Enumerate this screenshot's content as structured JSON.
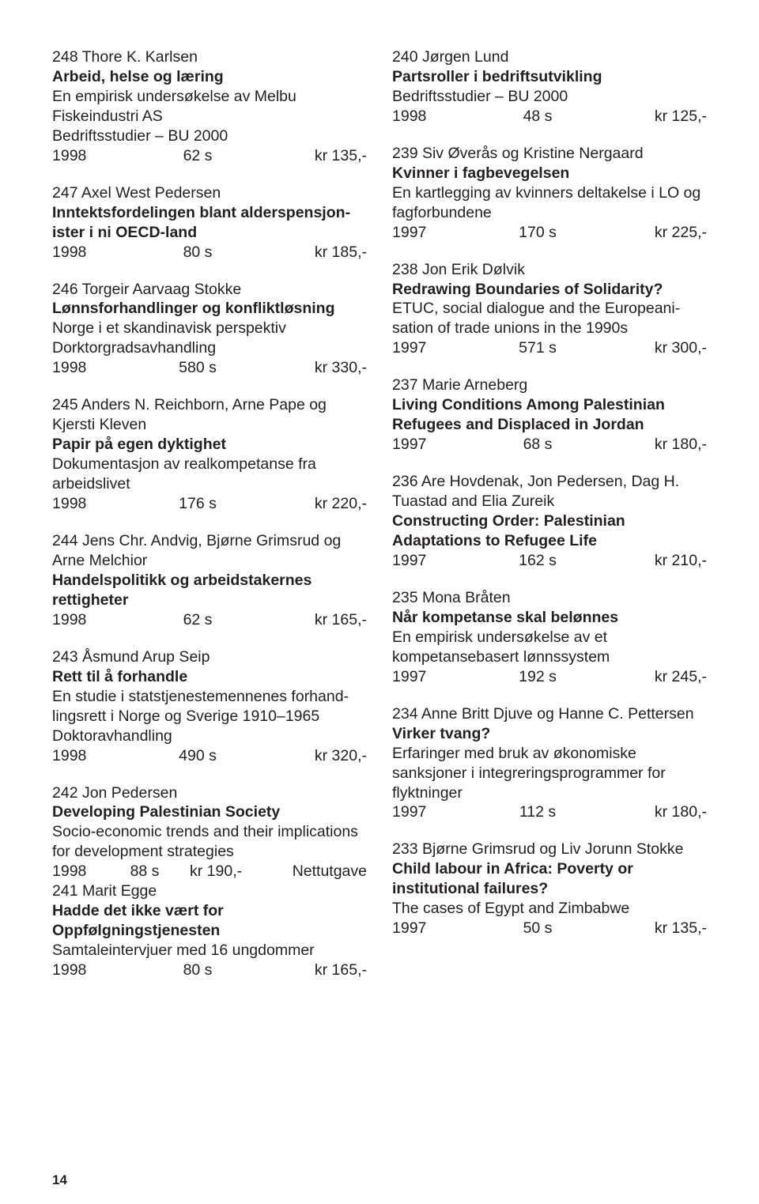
{
  "pageNumber": "14",
  "left": [
    {
      "author": "248 Thore K. Karlsen",
      "title": "Arbeid, helse og læring",
      "sub": [
        "En empirisk undersøkelse av Melbu",
        "Fiskeindustri AS",
        "Bedriftsstudier – BU 2000"
      ],
      "year": "1998",
      "pages": "62 s",
      "price": "kr 135,-"
    },
    {
      "author": "247 Axel West Pedersen",
      "title": "Inntektsfordelingen blant alderspensjon­ister i ni OECD-land",
      "sub": [],
      "year": "1998",
      "pages": "80 s",
      "price": "kr 185,-"
    },
    {
      "author": "246 Torgeir Aarvaag Stokke",
      "title": "Lønnsforhandlinger og konfliktløsning",
      "sub": [
        "Norge i et skandinavisk perspektiv",
        "Dorktorgradsavhandling"
      ],
      "year": "1998",
      "pages": "580 s",
      "price": "kr 330,-"
    },
    {
      "author": "245 Anders N. Reichborn, Arne Pape og Kjersti Kleven",
      "title": "Papir på egen dyktighet",
      "sub": [
        "Dokumentasjon av realkompetanse fra arbeidslivet"
      ],
      "year": "1998",
      "pages": "176 s",
      "price": "kr 220,-"
    },
    {
      "author": "244 Jens Chr. Andvig, Bjørne Grimsrud og Arne Melchior",
      "title": "Handelspolitikk og arbeidstakernes rettigheter",
      "sub": [],
      "year": "1998",
      "pages": "62 s",
      "price": "kr 165,-"
    },
    {
      "author": "243 Åsmund Arup Seip",
      "title": "Rett til å forhandle",
      "sub": [
        "En studie i statstjenestemennenes forhand­lingsrett i Norge og Sverige 1910–1965",
        "Doktoravhandling"
      ],
      "year": "1998",
      "pages": "490 s",
      "price": "kr 320,-"
    },
    {
      "author": "242 Jon Pedersen",
      "title": "Developing Palestinian Society",
      "sub": [
        "Socio-economic trends and their implications for development strategies"
      ],
      "year": "1998",
      "pages": "88 s",
      "price": "kr 190,-",
      "note": "Nettutgave",
      "appendAuthor": "241 Marit Egge",
      "appendTitle": "Hadde det ikke vært for Oppfølgningstjenesten",
      "appendSub": [
        "Samtaleintervjuer med 16 ungdommer"
      ],
      "appendYear": "1998",
      "appendPages": "80  s",
      "appendPrice": "kr 165,-"
    }
  ],
  "right": [
    {
      "author": "240 Jørgen Lund",
      "title": "Partsroller i bedriftsutvikling",
      "sub": [
        "Bedriftsstudier – BU 2000"
      ],
      "year": "1998",
      "pages": "48 s",
      "price": "kr 125,-"
    },
    {
      "author": "239 Siv Øverås og Kristine Nergaard",
      "title": "Kvinner i fagbevegelsen",
      "sub": [
        "En kartlegging av kvinners deltakelse i LO og fagforbundene"
      ],
      "year": "1997",
      "pages": "170 s",
      "price": "kr 225,-"
    },
    {
      "author": "238 Jon Erik Dølvik",
      "title": "Redrawing Boundaries of Solidarity?",
      "sub": [
        "ETUC, social dialogue and the Europeani­sation of trade unions in the 1990s"
      ],
      "year": "1997",
      "pages": "571 s",
      "price": "kr 300,-"
    },
    {
      "author": "237 Marie Arneberg",
      "title": "Living Conditions Among Palestinian Refugees and Displaced in Jordan",
      "sub": [],
      "year": "1997",
      "pages": "68 s",
      "price": "kr 180,-"
    },
    {
      "author": "236 Are Hovdenak, Jon Pedersen, Dag H. Tuastad and Elia Zureik",
      "title": "Constructing Order: Palestinian Adaptations to Refugee Life",
      "sub": [],
      "year": "1997",
      "pages": "162 s",
      "price": "kr 210,-"
    },
    {
      "author": "235 Mona Bråten",
      "title": "Når kompetanse skal belønnes",
      "sub": [
        "En empirisk undersøkelse av et kompetansebasert lønnssystem"
      ],
      "year": "1997",
      "pages": "192 s",
      "price": "kr 245,-"
    },
    {
      "author": "234 Anne Britt Djuve og Hanne C. Pettersen",
      "title": "Virker tvang?",
      "sub": [
        "Erfaringer med bruk av økonomiske sanksjoner i integreringsprogrammer for flyktninger"
      ],
      "year": "1997",
      "pages": "112 s",
      "price": "kr 180,-"
    },
    {
      "author": "233 Bjørne Grimsrud og Liv Jorunn Stokke",
      "title": "Child labour in Africa: Poverty or institutional failures?",
      "sub": [
        "The cases of Egypt and Zimbabwe"
      ],
      "year": "1997",
      "pages": "50 s",
      "price": "kr 135,-"
    }
  ]
}
